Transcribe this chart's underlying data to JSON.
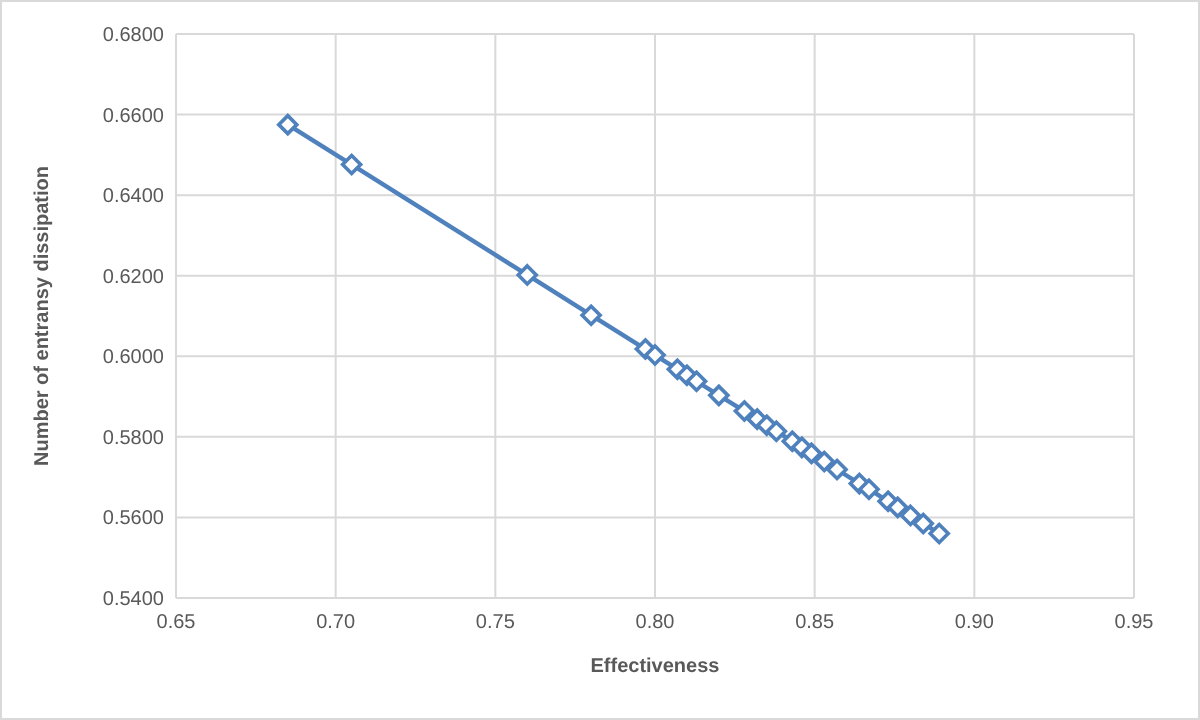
{
  "chart_data": {
    "type": "line",
    "xlabel": "Effectiveness",
    "ylabel": "Number of entransy dissipation",
    "x": [
      0.685,
      0.705,
      0.76,
      0.78,
      0.797,
      0.8,
      0.807,
      0.81,
      0.813,
      0.82,
      0.828,
      0.832,
      0.835,
      0.838,
      0.843,
      0.846,
      0.849,
      0.853,
      0.857,
      0.864,
      0.867,
      0.873,
      0.876,
      0.88,
      0.884,
      0.889
    ],
    "series": [
      {
        "color": "#4f81bd",
        "values": [
          0.6575,
          0.6476,
          0.6202,
          0.6102,
          0.6018,
          0.6003,
          0.5968,
          0.5953,
          0.5938,
          0.5903,
          0.5864,
          0.5844,
          0.5829,
          0.5814,
          0.5789,
          0.5774,
          0.5759,
          0.5739,
          0.5719,
          0.5684,
          0.567,
          0.564,
          0.5625,
          0.5605,
          0.5585,
          0.556
        ]
      }
    ],
    "xlim": [
      0.65,
      0.95
    ],
    "xticks": [
      {
        "value": 0.65,
        "label": "0.65"
      },
      {
        "value": 0.7,
        "label": "0.70"
      },
      {
        "value": 0.75,
        "label": "0.75"
      },
      {
        "value": 0.8,
        "label": "0.80"
      },
      {
        "value": 0.85,
        "label": "0.85"
      },
      {
        "value": 0.9,
        "label": "0.90"
      },
      {
        "value": 0.95,
        "label": "0.95"
      }
    ],
    "ylim": [
      0.54,
      0.68
    ],
    "yticks": [
      {
        "value": 0.54,
        "label": "0.5400"
      },
      {
        "value": 0.56,
        "label": "0.5600"
      },
      {
        "value": 0.58,
        "label": "0.5800"
      },
      {
        "value": 0.6,
        "label": "0.6000"
      },
      {
        "value": 0.62,
        "label": "0.6200"
      },
      {
        "value": 0.64,
        "label": "0.6400"
      },
      {
        "value": 0.66,
        "label": "0.6600"
      },
      {
        "value": 0.68,
        "label": "0.6800"
      }
    ],
    "grid": true,
    "marker": "diamond",
    "line_style": "solid"
  }
}
